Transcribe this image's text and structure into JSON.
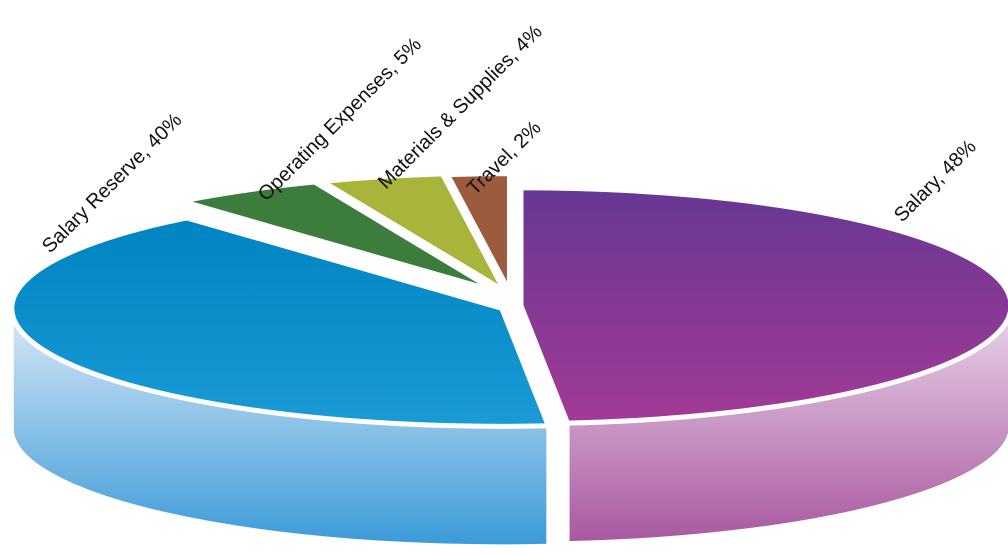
{
  "chart_data": {
    "type": "pie",
    "title": "",
    "style": "3d-exploded",
    "slices": [
      {
        "label": "Salary",
        "value": 48,
        "color": "#8b3a98",
        "label_text": "Salary, 48%"
      },
      {
        "label": "Salary Reserve",
        "value": 40,
        "color": "#0a8dcc",
        "label_text": "Salary Reserve, 40%"
      },
      {
        "label": "Operating Expenses",
        "value": 5,
        "color": "#3c7d3e",
        "label_text": "Operating Expenses, 5%"
      },
      {
        "label": "Materials & Supplies",
        "value": 4,
        "color": "#a9b43a",
        "label_text": "Materials & Supplies, 4%"
      },
      {
        "label": "Travel",
        "value": 2,
        "color": "#9c5a3e",
        "label_text": "Travel, 2%"
      }
    ]
  }
}
